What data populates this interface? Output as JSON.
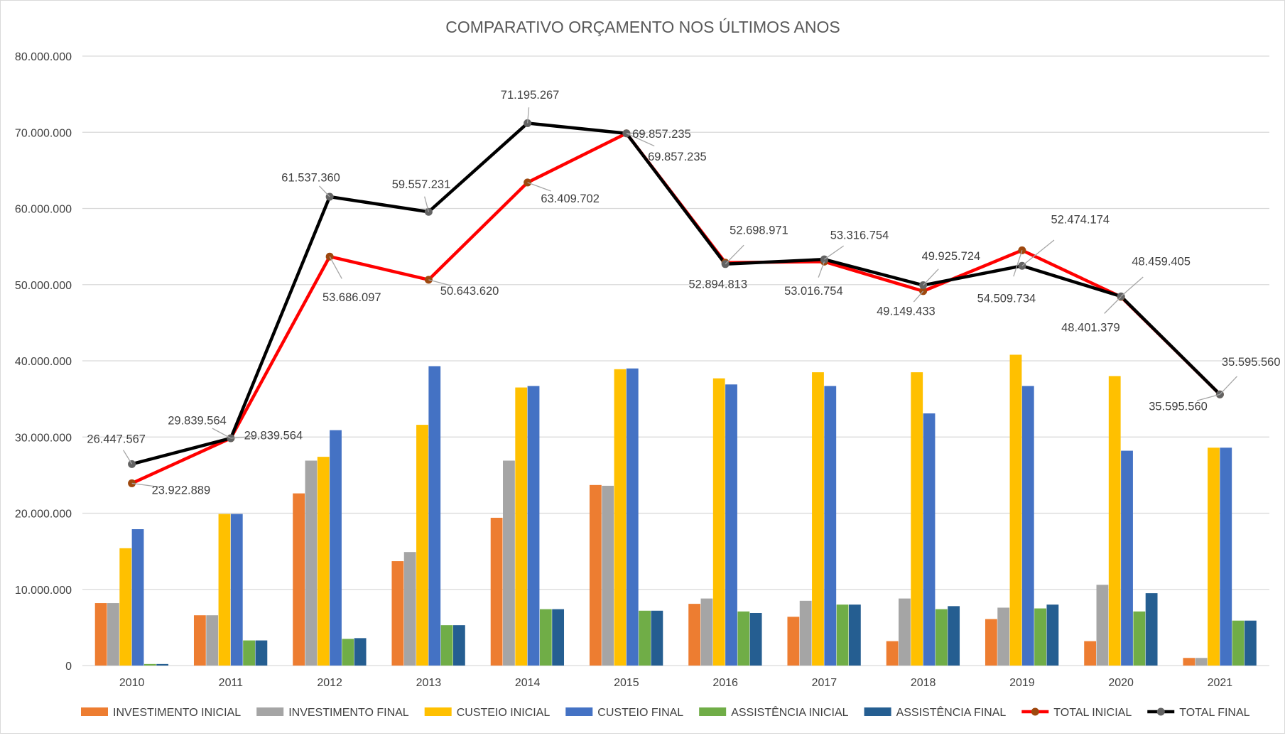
{
  "chart_data": {
    "type": "bar+line",
    "title": "COMPARATIVO ORÇAMENTO NOS ÚLTIMOS ANOS",
    "xlabel": "",
    "ylabel": "",
    "ylim": [
      0,
      80000000
    ],
    "y_ticks": [
      "0",
      "10.000.000",
      "20.000.000",
      "30.000.000",
      "40.000.000",
      "50.000.000",
      "60.000.000",
      "70.000.000",
      "80.000.000"
    ],
    "grid": true,
    "legend_position": "bottom",
    "categories": [
      "2010",
      "2011",
      "2012",
      "2013",
      "2014",
      "2015",
      "2016",
      "2017",
      "2018",
      "2019",
      "2020",
      "2021"
    ],
    "series": [
      {
        "name": "INVESTIMENTO INICIAL",
        "type": "bar",
        "color": "#ED7D31",
        "values": [
          8200000,
          6600000,
          22600000,
          13700000,
          19400000,
          23700000,
          8100000,
          6400000,
          3200000,
          6100000,
          3200000,
          1000000
        ]
      },
      {
        "name": "INVESTIMENTO FINAL",
        "type": "bar",
        "color": "#A5A5A5",
        "values": [
          8200000,
          6600000,
          26900000,
          14900000,
          26900000,
          23600000,
          8800000,
          8500000,
          8800000,
          7600000,
          10600000,
          1000000
        ]
      },
      {
        "name": "CUSTEIO INICIAL",
        "type": "bar",
        "color": "#FFC000",
        "values": [
          15400000,
          19900000,
          27400000,
          31600000,
          36500000,
          38900000,
          37700000,
          38500000,
          38500000,
          40800000,
          38000000,
          28600000
        ]
      },
      {
        "name": "CUSTEIO FINAL",
        "type": "bar",
        "color": "#4472C4",
        "values": [
          17900000,
          19900000,
          30900000,
          39300000,
          36700000,
          39000000,
          36900000,
          36700000,
          33100000,
          36700000,
          28200000,
          28600000
        ]
      },
      {
        "name": "ASSISTÊNCIA INICIAL",
        "type": "bar",
        "color": "#70AD47",
        "values": [
          200000,
          3300000,
          3500000,
          5300000,
          7400000,
          7200000,
          7100000,
          8000000,
          7400000,
          7500000,
          7100000,
          5900000
        ]
      },
      {
        "name": "ASSISTÊNCIA FINAL",
        "type": "bar",
        "color": "#255E91",
        "values": [
          200000,
          3300000,
          3600000,
          5300000,
          7400000,
          7200000,
          6900000,
          8000000,
          7800000,
          8000000,
          9500000,
          5900000
        ]
      },
      {
        "name": "TOTAL INICIAL",
        "type": "line",
        "color": "#FF0000",
        "marker_color": "#9E480E",
        "values": [
          23922889,
          29839564,
          53686097,
          50643620,
          63409702,
          69857235,
          52894813,
          53016754,
          49149433,
          54509734,
          48401379,
          35595560
        ],
        "labels": [
          "23.922.889",
          "29.839.564",
          "53.686.097",
          "50.643.620",
          "63.409.702",
          "69.857.235",
          "52.894.813",
          "53.016.754",
          "49.149.433",
          "54.509.734",
          "48.401.379",
          "35.595.560"
        ]
      },
      {
        "name": "TOTAL FINAL",
        "type": "line",
        "color": "#000000",
        "marker_color": "#636363",
        "values": [
          26447567,
          29839564,
          61537360,
          59557231,
          71195267,
          69857235,
          52698971,
          53316754,
          49925724,
          52474174,
          48459405,
          35595560
        ],
        "labels": [
          "26.447.567",
          "29.839.564",
          "61.537.360",
          "59.557.231",
          "71.195.267",
          "69.857.235",
          "52.698.971",
          "53.316.754",
          "49.925.724",
          "52.474.174",
          "48.459.405",
          "35.595.560"
        ]
      }
    ]
  }
}
